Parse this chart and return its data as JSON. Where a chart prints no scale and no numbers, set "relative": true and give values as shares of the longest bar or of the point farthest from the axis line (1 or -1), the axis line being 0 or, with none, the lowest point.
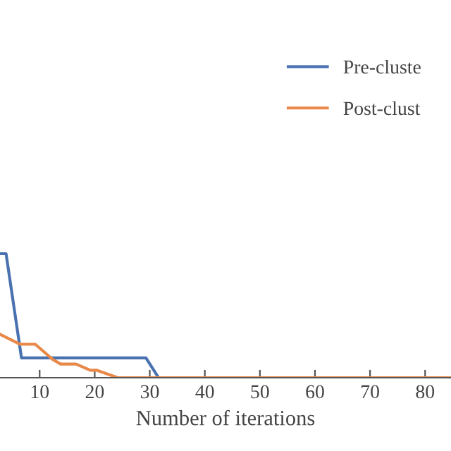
{
  "chart_data": {
    "type": "line",
    "xlabel": "Number of iterations",
    "relative": true,
    "xlim": [
      2.8,
      84.7
    ],
    "xticks": [
      10,
      20,
      30,
      40,
      50,
      60,
      70,
      80
    ],
    "grid": false,
    "legend": "top right",
    "series": [
      {
        "name": "Pre-cluste",
        "color": "#4a72b0",
        "x": [
          2.8,
          3.9,
          6.7,
          29.3,
          31.6,
          54
        ],
        "values": [
          1,
          1,
          0.16,
          0.16,
          0,
          0
        ]
      },
      {
        "name": "Post-clust",
        "color": "#e8894a",
        "x": [
          2.8,
          6.4,
          9.2,
          12.3,
          13.8,
          16.6,
          19.2,
          20.4,
          24.2,
          84.7
        ],
        "values": [
          0.35,
          0.27,
          0.27,
          0.15,
          0.11,
          0.11,
          0.06,
          0.06,
          0,
          0
        ]
      }
    ]
  }
}
